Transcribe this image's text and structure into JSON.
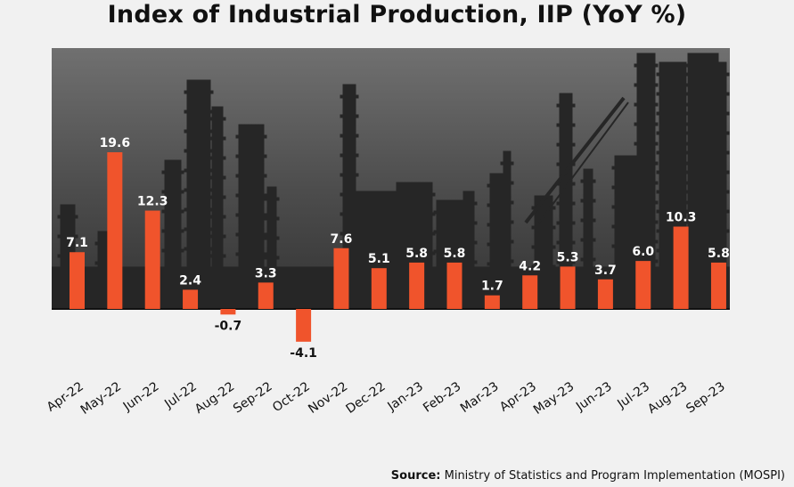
{
  "title": "Index of Industrial Production, IIP (YoY %)",
  "source": {
    "label": "Source:",
    "text": "Ministry of Statistics and Program Implementation (MOSPI)"
  },
  "colors": {
    "bar": "#f0542c",
    "background": "#f1f1f1",
    "photo_dark": "#3b3b3b",
    "label_on_photo": "#ffffff",
    "label_below": "#111111"
  },
  "chart_data": {
    "type": "bar",
    "title": "Index of Industrial Production, IIP (YoY %)",
    "xlabel": "",
    "ylabel": "",
    "categories": [
      "Apr-22",
      "May-22",
      "Jun-22",
      "Jul-22",
      "Aug-22",
      "Sep-22",
      "Oct-22",
      "Nov-22",
      "Dec-22",
      "Jan-23",
      "Feb-23",
      "Mar-23",
      "Apr-23",
      "May-23",
      "Jun-23",
      "Jul-23",
      "Aug-23",
      "Sep-23"
    ],
    "values": [
      7.1,
      19.6,
      12.3,
      2.4,
      -0.7,
      3.3,
      -4.1,
      7.6,
      5.1,
      5.8,
      5.8,
      1.7,
      4.2,
      5.3,
      3.7,
      6.0,
      10.3,
      5.8
    ],
    "data_labels": [
      "7.1",
      "19.6",
      "12.3",
      "2.4",
      "-0.7",
      "3.3",
      "-4.1",
      "7.6",
      "5.1",
      "5.8",
      "5.8",
      "1.7",
      "4.2",
      "5.3",
      "3.7",
      "6.0",
      "10.3",
      "5.8"
    ],
    "ylim": [
      -4.1,
      19.6
    ],
    "grid": false,
    "legend": "none",
    "background": "industrial refinery photo (grayscale)"
  }
}
